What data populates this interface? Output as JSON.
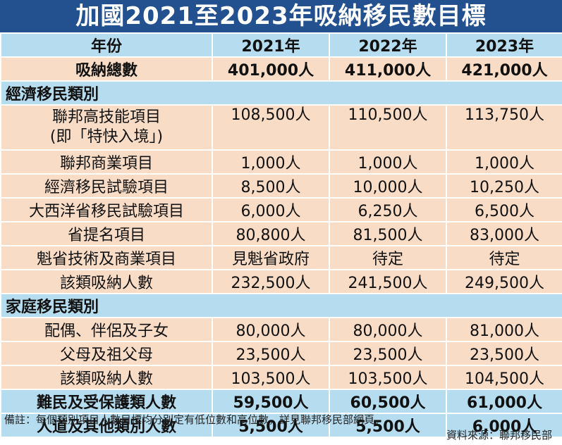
{
  "title": "加國2021至2023年吸納移民數目標",
  "header": [
    "年份",
    "2021年",
    "2022年",
    "2023年"
  ],
  "total": [
    "吸納總數",
    "401,000人",
    "411,000人",
    "421,000人"
  ],
  "economic": {
    "section_title": "經濟移民類別",
    "rows": [
      {
        "label": "聯邦高技能項目",
        "label2": "(即「特快入境」)",
        "v": [
          "108,500人",
          "110,500人",
          "113,750人"
        ]
      },
      {
        "label": "聯邦商業項目",
        "v": [
          "1,000人",
          "1,000人",
          "1,000人"
        ]
      },
      {
        "label": "經濟移民試驗項目",
        "v": [
          "8,500人",
          "10,000人",
          "10,250人"
        ]
      },
      {
        "label": "大西洋省移民試驗項目",
        "v": [
          "6,000人",
          "6,250人",
          "6,500人"
        ]
      },
      {
        "label": "省提名項目",
        "v": [
          "80,800人",
          "81,500人",
          "83,000人"
        ]
      },
      {
        "label": "魁省技術及商業項目",
        "v": [
          "見魁省政府",
          "待定",
          "待定"
        ]
      },
      {
        "label": "該類吸納人數",
        "v": [
          "232,500人",
          "241,500人",
          "249,500人"
        ]
      }
    ]
  },
  "family": {
    "section_title": "家庭移民類別",
    "rows": [
      {
        "label": "配偶、伴侶及子女",
        "v": [
          "80,000人",
          "80,000人",
          "81,000人"
        ]
      },
      {
        "label": "父母及祖父母",
        "v": [
          "23,500人",
          "23,500人",
          "23,500人"
        ]
      },
      {
        "label": "該類吸納人數",
        "v": [
          "103,500人",
          "103,500人",
          "104,500人"
        ]
      }
    ]
  },
  "refugee": [
    "難民及受保護類人數",
    "59,500人",
    "60,500人",
    "61,000人"
  ],
  "humanitarian": [
    "人道及其他類別人數",
    "5,500人",
    "5,500人",
    "6,000人"
  ],
  "note": "備註：每個類別項目人數目標均分別定有低位數和高位數，詳見聯邦移民部網頁。",
  "source": "資料來源：聯邦移民部"
}
